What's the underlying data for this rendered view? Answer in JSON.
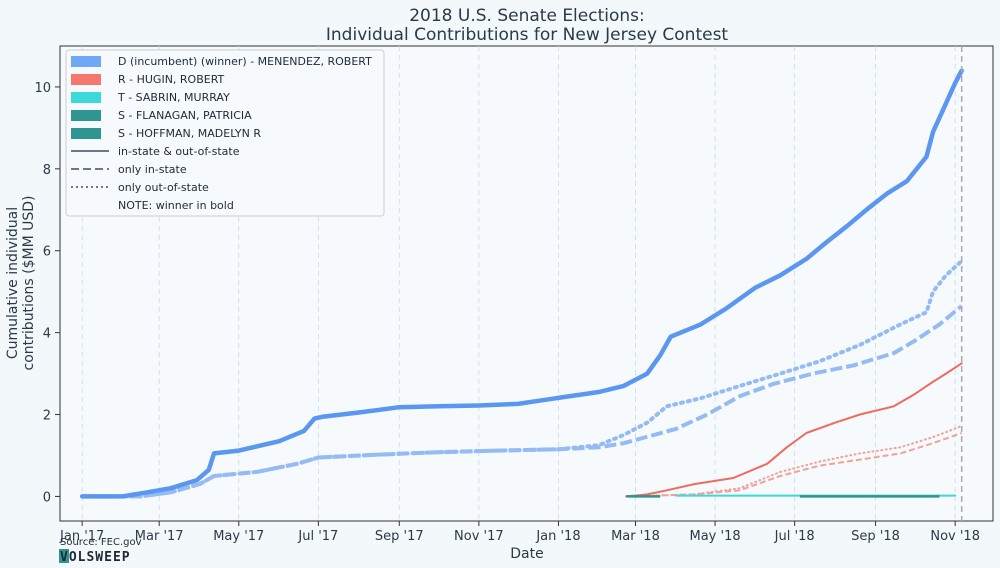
{
  "chart_data": {
    "type": "line",
    "title": "2018 U.S. Senate Elections:",
    "subtitle": "Individual Contributions for New Jersey Contest",
    "xlabel": "Date",
    "ylabel_line1": "Cumulative individual",
    "ylabel_line2": "contributions ($MM USD)",
    "x_ticks": [
      "Jan '17",
      "Mar '17",
      "May '17",
      "Jul '17",
      "Sep '17",
      "Nov '17",
      "Jan '18",
      "Mar '18",
      "May '18",
      "Jul '18",
      "Sep '18",
      "Nov '18"
    ],
    "y_ticks": [
      "0",
      "2",
      "4",
      "6",
      "8",
      "10"
    ],
    "xlim": [
      "2016-12-15",
      "2018-11-30"
    ],
    "ylim": [
      -0.6,
      11.0
    ],
    "election_date": "2018-11-06",
    "grid": "vertical dashed",
    "legend_position": "top-left",
    "legend": {
      "candidates": [
        {
          "label": "D (incumbent) (winner) - MENENDEZ, ROBERT",
          "color": "#6fa8f7"
        },
        {
          "label": "R - HUGIN, ROBERT",
          "color": "#f7776e"
        },
        {
          "label": "T - SABRIN, MURRAY",
          "color": "#3dd8d8"
        },
        {
          "label": "S - FLANAGAN, PATRICIA",
          "color": "#2e9590"
        },
        {
          "label": "S - HOFFMAN, MADELYN R",
          "color": "#2e9590"
        }
      ],
      "styles": [
        {
          "label": "in-state & out-of-state",
          "dash": "solid"
        },
        {
          "label": "only in-state",
          "dash": "dashed"
        },
        {
          "label": "only out-of-state",
          "dash": "dotted"
        }
      ],
      "note": "NOTE: winner in bold"
    },
    "series": [
      {
        "candidate": "MENENDEZ",
        "style": "solid",
        "color": "#5b97f0",
        "bold": true,
        "points": [
          [
            "2017-01-01",
            0
          ],
          [
            "2017-02-01",
            0
          ],
          [
            "2017-02-20",
            0.1
          ],
          [
            "2017-03-10",
            0.2
          ],
          [
            "2017-03-30",
            0.4
          ],
          [
            "2017-04-08",
            0.65
          ],
          [
            "2017-04-12",
            1.05
          ],
          [
            "2017-05-01",
            1.12
          ],
          [
            "2017-06-01",
            1.35
          ],
          [
            "2017-06-20",
            1.6
          ],
          [
            "2017-06-28",
            1.9
          ],
          [
            "2017-07-05",
            1.95
          ],
          [
            "2017-08-01",
            2.05
          ],
          [
            "2017-09-01",
            2.18
          ],
          [
            "2017-10-01",
            2.2
          ],
          [
            "2017-11-01",
            2.22
          ],
          [
            "2017-12-01",
            2.26
          ],
          [
            "2017-12-20",
            2.35
          ],
          [
            "2018-01-10",
            2.45
          ],
          [
            "2018-02-01",
            2.55
          ],
          [
            "2018-02-20",
            2.7
          ],
          [
            "2018-03-10",
            3.0
          ],
          [
            "2018-03-20",
            3.45
          ],
          [
            "2018-03-28",
            3.9
          ],
          [
            "2018-04-20",
            4.2
          ],
          [
            "2018-05-10",
            4.6
          ],
          [
            "2018-06-01",
            5.1
          ],
          [
            "2018-06-20",
            5.4
          ],
          [
            "2018-07-10",
            5.8
          ],
          [
            "2018-07-25",
            6.2
          ],
          [
            "2018-08-10",
            6.6
          ],
          [
            "2018-08-25",
            7.0
          ],
          [
            "2018-09-10",
            7.4
          ],
          [
            "2018-09-25",
            7.7
          ],
          [
            "2018-10-10",
            8.3
          ],
          [
            "2018-10-15",
            8.9
          ],
          [
            "2018-10-25",
            9.6
          ],
          [
            "2018-11-01",
            10.1
          ],
          [
            "2018-11-06",
            10.4
          ]
        ]
      },
      {
        "candidate": "MENENDEZ",
        "style": "dashed",
        "color": "#94bbf3",
        "points": [
          [
            "2017-01-01",
            0
          ],
          [
            "2017-02-15",
            0
          ],
          [
            "2017-03-10",
            0.1
          ],
          [
            "2017-04-01",
            0.3
          ],
          [
            "2017-04-12",
            0.5
          ],
          [
            "2017-05-15",
            0.6
          ],
          [
            "2017-06-15",
            0.8
          ],
          [
            "2017-07-01",
            0.95
          ],
          [
            "2017-08-15",
            1.02
          ],
          [
            "2017-10-01",
            1.08
          ],
          [
            "2017-11-15",
            1.12
          ],
          [
            "2018-01-01",
            1.15
          ],
          [
            "2018-02-01",
            1.2
          ],
          [
            "2018-02-20",
            1.3
          ],
          [
            "2018-03-15",
            1.5
          ],
          [
            "2018-04-01",
            1.65
          ],
          [
            "2018-04-25",
            2.0
          ],
          [
            "2018-05-20",
            2.45
          ],
          [
            "2018-06-15",
            2.75
          ],
          [
            "2018-07-15",
            3.0
          ],
          [
            "2018-08-15",
            3.2
          ],
          [
            "2018-09-15",
            3.5
          ],
          [
            "2018-10-01",
            3.8
          ],
          [
            "2018-10-20",
            4.2
          ],
          [
            "2018-11-06",
            4.65
          ]
        ]
      },
      {
        "candidate": "MENENDEZ",
        "style": "dotted",
        "color": "#94bbf3",
        "points": [
          [
            "2017-01-01",
            0
          ],
          [
            "2017-02-15",
            0
          ],
          [
            "2017-03-10",
            0.1
          ],
          [
            "2017-04-01",
            0.3
          ],
          [
            "2017-04-12",
            0.5
          ],
          [
            "2017-05-15",
            0.6
          ],
          [
            "2017-06-15",
            0.8
          ],
          [
            "2017-07-01",
            0.95
          ],
          [
            "2017-08-15",
            1.02
          ],
          [
            "2017-10-01",
            1.08
          ],
          [
            "2017-11-15",
            1.12
          ],
          [
            "2018-01-01",
            1.15
          ],
          [
            "2018-02-01",
            1.25
          ],
          [
            "2018-02-20",
            1.5
          ],
          [
            "2018-03-10",
            1.8
          ],
          [
            "2018-03-25",
            2.2
          ],
          [
            "2018-04-20",
            2.4
          ],
          [
            "2018-05-20",
            2.7
          ],
          [
            "2018-06-20",
            3.0
          ],
          [
            "2018-07-20",
            3.3
          ],
          [
            "2018-08-20",
            3.7
          ],
          [
            "2018-09-20",
            4.2
          ],
          [
            "2018-10-10",
            4.5
          ],
          [
            "2018-10-15",
            5.0
          ],
          [
            "2018-10-25",
            5.4
          ],
          [
            "2018-11-06",
            5.75
          ]
        ]
      },
      {
        "candidate": "HUGIN",
        "style": "solid",
        "color": "#f06a60",
        "points": [
          [
            "2018-02-22",
            0
          ],
          [
            "2018-03-10",
            0.05
          ],
          [
            "2018-03-25",
            0.15
          ],
          [
            "2018-04-15",
            0.3
          ],
          [
            "2018-05-15",
            0.45
          ],
          [
            "2018-06-10",
            0.8
          ],
          [
            "2018-06-25",
            1.2
          ],
          [
            "2018-07-10",
            1.55
          ],
          [
            "2018-08-01",
            1.8
          ],
          [
            "2018-08-20",
            2.0
          ],
          [
            "2018-09-15",
            2.2
          ],
          [
            "2018-10-01",
            2.5
          ],
          [
            "2018-10-15",
            2.8
          ],
          [
            "2018-10-25",
            3.0
          ],
          [
            "2018-11-06",
            3.25
          ]
        ]
      },
      {
        "candidate": "HUGIN",
        "style": "dashed",
        "color": "#f4a09a",
        "points": [
          [
            "2018-02-22",
            0
          ],
          [
            "2018-04-15",
            0.05
          ],
          [
            "2018-05-20",
            0.15
          ],
          [
            "2018-06-20",
            0.5
          ],
          [
            "2018-07-20",
            0.75
          ],
          [
            "2018-08-20",
            0.9
          ],
          [
            "2018-09-20",
            1.05
          ],
          [
            "2018-10-15",
            1.3
          ],
          [
            "2018-11-06",
            1.55
          ]
        ]
      },
      {
        "candidate": "HUGIN",
        "style": "dotted",
        "color": "#f4a09a",
        "points": [
          [
            "2018-02-22",
            0
          ],
          [
            "2018-04-15",
            0.05
          ],
          [
            "2018-05-20",
            0.2
          ],
          [
            "2018-06-20",
            0.6
          ],
          [
            "2018-07-20",
            0.85
          ],
          [
            "2018-08-20",
            1.05
          ],
          [
            "2018-09-20",
            1.2
          ],
          [
            "2018-10-15",
            1.45
          ],
          [
            "2018-11-06",
            1.72
          ]
        ]
      },
      {
        "candidate": "SABRIN",
        "style": "solid",
        "color": "#3dd8d8",
        "points": [
          [
            "2018-04-01",
            0.02
          ],
          [
            "2018-11-01",
            0.02
          ]
        ]
      },
      {
        "candidate": "FLANAGAN",
        "style": "solid",
        "color": "#2e9590",
        "points": [
          [
            "2018-02-22",
            0.0
          ],
          [
            "2018-03-20",
            0.0
          ]
        ]
      },
      {
        "candidate": "HOFFMAN",
        "style": "solid",
        "color": "#2e9590",
        "points": [
          [
            "2018-07-05",
            0.0
          ],
          [
            "2018-10-20",
            0.0
          ]
        ]
      }
    ]
  },
  "source": "Source: FEC.gov",
  "logo": "VOLSWEEP"
}
